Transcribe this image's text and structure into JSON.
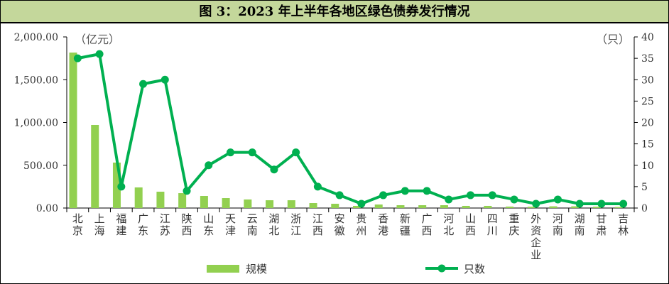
{
  "chart_data": {
    "type": "bar+line",
    "title": "图 3：2023 年上半年各地区绿色债券发行情况",
    "left_unit": "（亿元）",
    "right_unit": "（只）",
    "categories": [
      "北京",
      "上海",
      "福建",
      "广东",
      "江苏",
      "陕西",
      "山东",
      "天津",
      "云南",
      "湖北",
      "浙江",
      "江西",
      "安徽",
      "贵州",
      "香港",
      "新疆",
      "广西",
      "河北",
      "山西",
      "四川",
      "重庆",
      "外资企业",
      "河南",
      "湖南",
      "甘肃",
      "吉林"
    ],
    "series": [
      {
        "name": "规模",
        "type": "bar",
        "axis": "left",
        "color": "#92d050",
        "values": [
          1817,
          971,
          531,
          241,
          191,
          174,
          141,
          116,
          100,
          91,
          91,
          58,
          50,
          25,
          41,
          33,
          33,
          33,
          25,
          25,
          17,
          15,
          20,
          20,
          15,
          12
        ]
      },
      {
        "name": "只数",
        "type": "line",
        "axis": "right",
        "color": "#00b050",
        "values": [
          35,
          36,
          5,
          29,
          30,
          4,
          10,
          13,
          13,
          9,
          13,
          5,
          3,
          1,
          3,
          4,
          4,
          2,
          3,
          3,
          2,
          1,
          2,
          1,
          1,
          1
        ]
      }
    ],
    "ylim_left": [
      0,
      2000
    ],
    "yticks_left": [
      "0.00",
      "500.00",
      "1,000.00",
      "1,500.00",
      "2,000.00"
    ],
    "ylim_right": [
      0,
      40
    ],
    "yticks_right": [
      "0",
      "5",
      "10",
      "15",
      "20",
      "25",
      "30",
      "35",
      "40"
    ],
    "legend": "bottom",
    "grid": false
  }
}
